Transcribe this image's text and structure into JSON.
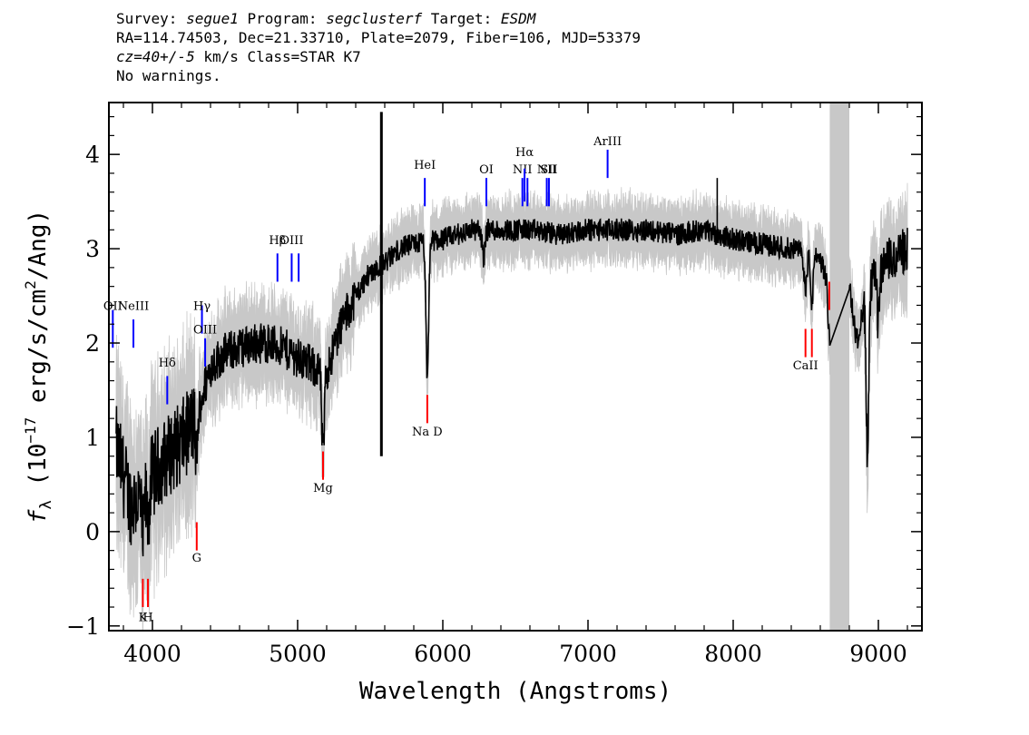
{
  "header": {
    "survey_label": "Survey: ",
    "survey": "segue1",
    "program_label": " Program: ",
    "program": "segclusterf",
    "target_label": " Target: ",
    "target": "ESDM",
    "coords": "RA=114.74503, Dec=21.33710, Plate=2079, Fiber=106, MJD=53379",
    "cz": "cz=40+/-5",
    "cz_units": " km/s Class=STAR K7",
    "warnings": "No warnings."
  },
  "chart_data": {
    "type": "line",
    "xlabel": "Wavelength (Angstroms)",
    "ylabel_prefix": "f",
    "ylabel_sub": "λ",
    "ylabel_rest": " (10",
    "ylabel_exp": "−17",
    "ylabel_units": " erg/s/cm",
    "ylabel_sq": "2",
    "ylabel_end": "/Ang)",
    "xlim": [
      3700,
      9300
    ],
    "ylim": [
      -1.05,
      4.55
    ],
    "xticks": [
      4000,
      5000,
      6000,
      7000,
      8000,
      9000
    ],
    "xtick_labels": [
      "4000",
      "5000",
      "6000",
      "7000",
      "8000",
      "9000"
    ],
    "yticks": [
      -1,
      0,
      1,
      2,
      3,
      4
    ],
    "ytick_labels": [
      "−1",
      "0",
      "1",
      "2",
      "3",
      "4"
    ],
    "masked_region": [
      8665,
      8800
    ],
    "colors": {
      "flux": "#000000",
      "error": "#c8c8c8",
      "mask": "#c8c8c8",
      "emission": "#0000ff",
      "absorption": "#ff0000"
    },
    "continuum": {
      "x": [
        3750,
        3800,
        3850,
        3900,
        3950,
        4000,
        4100,
        4200,
        4300,
        4400,
        4500,
        4600,
        4700,
        4800,
        4900,
        5000,
        5100,
        5200,
        5300,
        5400,
        5500,
        5600,
        5700,
        5800,
        5900,
        6000,
        6200,
        6400,
        6600,
        6800,
        7000,
        7200,
        7400,
        7600,
        7800,
        8000,
        8200,
        8400,
        8600,
        8665,
        8800,
        8850,
        8900,
        8950,
        9000,
        9100,
        9200
      ],
      "y": [
        0.9,
        0.6,
        0.3,
        0.35,
        0.45,
        0.6,
        0.8,
        0.95,
        1.2,
        1.75,
        1.9,
        1.95,
        2.0,
        2.0,
        1.95,
        1.85,
        1.75,
        1.7,
        2.2,
        2.5,
        2.75,
        2.85,
        3.0,
        3.05,
        3.08,
        3.1,
        3.2,
        3.2,
        3.2,
        3.15,
        3.2,
        3.2,
        3.2,
        3.15,
        3.2,
        3.1,
        3.05,
        3.0,
        2.9,
        2.55,
        2.65,
        2.0,
        2.4,
        2.6,
        2.8,
        2.9,
        3.0
      ]
    },
    "absorption_features": [
      {
        "x": 3934,
        "depth": 0.5
      },
      {
        "x": 3969,
        "depth": 0.4
      },
      {
        "x": 4305,
        "depth": 0.35
      },
      {
        "x": 5175,
        "depth": 0.9
      },
      {
        "x": 5577,
        "depth": 0.0
      },
      {
        "x": 5893,
        "depth": 1.5
      },
      {
        "x": 6280,
        "depth": 0.3
      },
      {
        "x": 8498,
        "depth": 0.4
      },
      {
        "x": 8542,
        "depth": 0.5
      },
      {
        "x": 8662,
        "depth": 0.5
      },
      {
        "x": 8925,
        "depth": 1.7
      },
      {
        "x": 9000,
        "depth": 0.6
      }
    ],
    "spikes": [
      {
        "x": 5577,
        "y": 4.45,
        "y2": 0.8
      },
      {
        "x": 7890,
        "y": 3.75
      }
    ],
    "emission_lines": [
      {
        "label": "OII",
        "x": 3727,
        "y1": 1.95,
        "y2": 2.35,
        "label_y": 2.35
      },
      {
        "label": "NeIII",
        "x": 3869,
        "y1": 1.95,
        "y2": 2.25,
        "label_y": 2.35
      },
      {
        "label": "Hδ",
        "x": 4102,
        "y1": 1.35,
        "y2": 1.65,
        "label_y": 1.75
      },
      {
        "label": "Hγ",
        "x": 4341,
        "y1": 2.1,
        "y2": 2.4,
        "label_y": 2.35
      },
      {
        "label": "OIII",
        "x": 4363,
        "y1": 1.75,
        "y2": 2.05,
        "label_y": 2.1
      },
      {
        "label": "Hβ",
        "x": 4861,
        "y1": 2.65,
        "y2": 2.95,
        "label_y": 3.05
      },
      {
        "label": "OIII",
        "x": 4959,
        "y1": 2.65,
        "y2": 2.95,
        "label_y": 3.05
      },
      {
        "label": "",
        "x": 5007,
        "y1": 2.65,
        "y2": 2.95,
        "label_y": 3.05
      },
      {
        "label": "HeI",
        "x": 5876,
        "y1": 3.45,
        "y2": 3.75,
        "label_y": 3.85
      },
      {
        "label": "OI",
        "x": 6300,
        "y1": 3.45,
        "y2": 3.75,
        "label_y": 3.8
      },
      {
        "label": "NII",
        "x": 6548,
        "y1": 3.45,
        "y2": 3.75,
        "label_y": 3.8
      },
      {
        "label": "Hα",
        "x": 6563,
        "y1": 3.5,
        "y2": 3.85,
        "label_y": 3.98
      },
      {
        "label": "",
        "x": 6583,
        "y1": 3.45,
        "y2": 3.75,
        "label_y": 3.8
      },
      {
        "label": "NII",
        "x": 6716,
        "y1": 3.45,
        "y2": 3.75,
        "label_y": 3.8
      },
      {
        "label": "SII",
        "x": 6731,
        "y1": 3.45,
        "y2": 3.75,
        "label_y": 3.8
      },
      {
        "label": "ArIII",
        "x": 7135,
        "y1": 3.75,
        "y2": 4.05,
        "label_y": 4.1
      }
    ],
    "absorption_lines": [
      {
        "label": "K",
        "x": 3934,
        "y1": -0.8,
        "y2": -0.5,
        "label_y": -0.95
      },
      {
        "label": "H",
        "x": 3969,
        "y1": -0.8,
        "y2": -0.5,
        "label_y": -0.95
      },
      {
        "label": "G",
        "x": 4305,
        "y1": -0.2,
        "y2": 0.1,
        "label_y": -0.32
      },
      {
        "label": "Mg",
        "x": 5175,
        "y1": 0.55,
        "y2": 0.85,
        "label_y": 0.42
      },
      {
        "label": "Na D",
        "x": 5893,
        "y1": 1.15,
        "y2": 1.45,
        "label_y": 1.02
      },
      {
        "label": "CaII",
        "x": 8498,
        "y1": 1.85,
        "y2": 2.15,
        "label_y": 1.72
      },
      {
        "label": "",
        "x": 8542,
        "y1": 1.85,
        "y2": 2.15,
        "label_y": 1.72
      },
      {
        "label": "",
        "x": 8662,
        "y1": 2.35,
        "y2": 2.65,
        "label_y": 2.2
      }
    ]
  }
}
